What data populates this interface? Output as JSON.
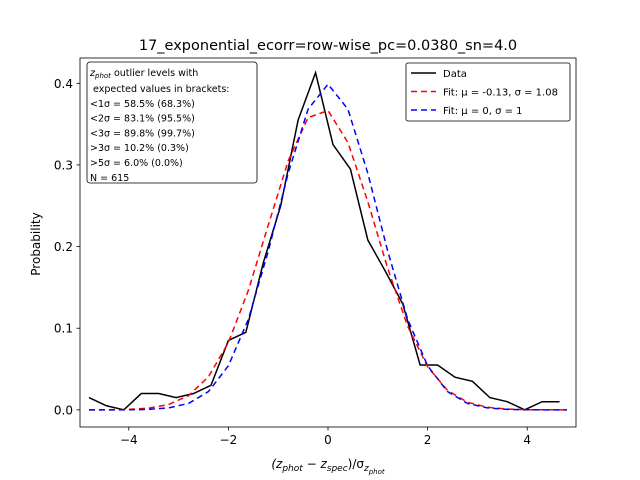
{
  "chart_data": {
    "type": "line",
    "title": "17_exponential_ecorr=row-wise_pc=0.0380_sn=4.0",
    "ylabel": "Probability",
    "xlabel": [
      {
        "text": "(z"
      },
      {
        "text": "phot",
        "sub": 1
      },
      {
        "text": " − z"
      },
      {
        "text": "spec",
        "sub": 1
      },
      {
        "text": ")/σ"
      },
      {
        "text": "z",
        "sub": 1
      },
      {
        "text": "phot",
        "sub": 2
      }
    ],
    "xlim": [
      -4.98,
      4.98
    ],
    "ylim": [
      -0.021,
      0.431
    ],
    "xticks": [
      {
        "value": -4,
        "label": "−4"
      },
      {
        "value": -2,
        "label": "−2"
      },
      0,
      2,
      4
    ],
    "yticks": [
      {
        "value": 0,
        "label": "0.0"
      },
      0.1,
      0.2,
      0.3,
      0.4
    ],
    "legend": "upper right",
    "series": [
      {
        "name": "Data",
        "color": "#000000",
        "dash": "none",
        "x": [
          -4.8,
          -4.45,
          -4.1,
          -3.75,
          -3.4,
          -3.05,
          -2.7,
          -2.35,
          -2.0,
          -1.65,
          -1.3,
          -0.95,
          -0.6,
          -0.25,
          0.1,
          0.45,
          0.8,
          1.15,
          1.5,
          1.85,
          2.2,
          2.55,
          2.9,
          3.25,
          3.6,
          3.95,
          4.3,
          4.65
        ],
        "values": [
          0.015,
          0.005,
          0.0,
          0.02,
          0.02,
          0.015,
          0.02,
          0.03,
          0.085,
          0.095,
          0.18,
          0.25,
          0.355,
          0.413,
          0.325,
          0.295,
          0.208,
          0.17,
          0.13,
          0.055,
          0.055,
          0.04,
          0.035,
          0.015,
          0.01,
          0.0,
          0.01,
          0.01
        ]
      },
      {
        "name": "Fit: μ = -0.13, σ = 1.08",
        "color": "#ff0000",
        "dash": "6,4",
        "x": [
          -4.8,
          -4.4,
          -4.0,
          -3.6,
          -3.2,
          -2.8,
          -2.4,
          -2.0,
          -1.6,
          -1.2,
          -0.8,
          -0.4,
          0,
          0.4,
          0.8,
          1.2,
          1.6,
          2.0,
          2.4,
          2.8,
          3.2,
          3.6,
          4.0,
          4.4,
          4.8
        ],
        "values": [
          0.0,
          0.0001,
          0.0006,
          0.0021,
          0.0065,
          0.0174,
          0.0406,
          0.0825,
          0.1463,
          0.2261,
          0.3049,
          0.358,
          0.3667,
          0.3275,
          0.2549,
          0.1731,
          0.1024,
          0.0528,
          0.0238,
          0.0093,
          0.0032,
          0.0009,
          0.0002,
          0.0001,
          0.0
        ]
      },
      {
        "name": "Fit: μ = 0, σ = 1",
        "color": "#0000ff",
        "dash": "6,4",
        "x": [
          -4.8,
          -4.4,
          -4.0,
          -3.6,
          -3.2,
          -2.8,
          -2.4,
          -2.0,
          -1.6,
          -1.2,
          -0.8,
          -0.4,
          0,
          0.4,
          0.8,
          1.2,
          1.6,
          2.0,
          2.4,
          2.8,
          3.2,
          3.6,
          4.0,
          4.4,
          4.8
        ],
        "values": [
          0.0,
          0.0,
          0.0001,
          0.0006,
          0.0024,
          0.0079,
          0.0224,
          0.054,
          0.1109,
          0.1942,
          0.2897,
          0.3683,
          0.3989,
          0.3683,
          0.2897,
          0.1942,
          0.1109,
          0.054,
          0.0224,
          0.0079,
          0.0024,
          0.0006,
          0.0001,
          0.0,
          0.0
        ]
      }
    ],
    "annotation": {
      "head": {
        "symbol": "z",
        "subscript": "phot",
        "text": " outlier levels with"
      },
      "lines": [
        " expected values in brackets:",
        "<1σ = 58.5% (68.3%)",
        "<2σ = 83.1% (95.5%)",
        "<3σ = 89.8% (99.7%)",
        ">3σ = 10.2% (0.3%)",
        ">5σ = 6.0% (0.0%)",
        "N = 615"
      ]
    }
  }
}
